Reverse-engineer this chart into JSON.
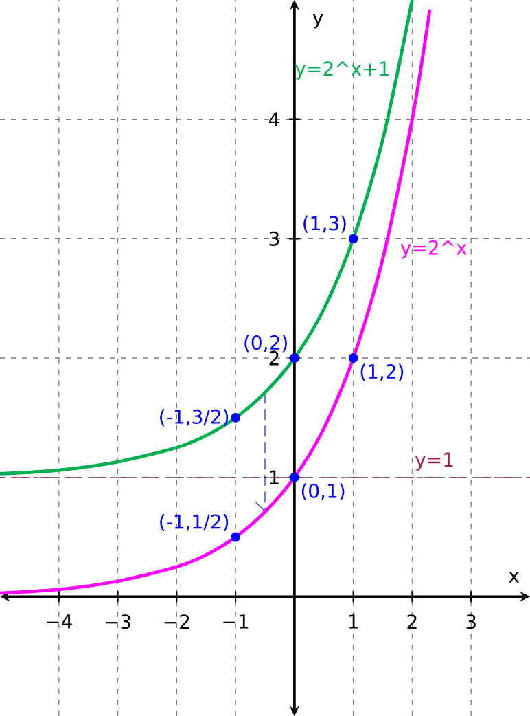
{
  "chart_data": {
    "type": "line",
    "xlabel": "x",
    "ylabel": "y",
    "xlim": [
      -5,
      4
    ],
    "ylim": [
      -1,
      5
    ],
    "xticks": [
      {
        "value": -4,
        "label": "−4"
      },
      {
        "value": -3,
        "label": "−3"
      },
      {
        "value": -2,
        "label": "−2"
      },
      {
        "value": -1,
        "label": "−1"
      },
      1,
      2,
      3
    ],
    "yticks": [
      1,
      2,
      3,
      4
    ],
    "grid": true,
    "series": [
      {
        "name": "y=2^x+1",
        "color": "#00b050",
        "x": [
          -5,
          -4,
          -3,
          -2,
          -1.5,
          -1,
          -0.5,
          0,
          0.5,
          1,
          1.5,
          2
        ],
        "values": [
          1.03,
          1.06,
          1.13,
          1.25,
          1.35,
          1.5,
          1.71,
          2,
          2.41,
          3,
          3.83,
          5
        ]
      },
      {
        "name": "y=2^x",
        "color": "#ff00ff",
        "x": [
          -5,
          -4,
          -3,
          -2,
          -1.5,
          -1,
          -0.5,
          0,
          0.5,
          1,
          1.5,
          2,
          2.3
        ],
        "values": [
          0.03,
          0.06,
          0.13,
          0.25,
          0.35,
          0.5,
          0.71,
          1,
          1.41,
          2,
          2.83,
          4,
          4.92
        ]
      },
      {
        "type": "scatter",
        "color": "#0000ff",
        "x": [
          1,
          0,
          -1,
          -1,
          0,
          1
        ],
        "values": [
          3,
          2,
          1.5,
          0.5,
          1,
          2
        ]
      }
    ],
    "ref_lines": [
      {
        "axis": "y",
        "value": 1,
        "label": "y=1",
        "color": "#a0204a",
        "line_style": "dashed"
      }
    ],
    "annotations": [
      {
        "text": "(1,3)",
        "x": 1,
        "y": 3
      },
      {
        "text": "(0,2)",
        "x": 0,
        "y": 2
      },
      {
        "text": "(-1,3/2)",
        "x": -1,
        "y": 1.5
      },
      {
        "text": "(-1,1/2)",
        "x": -1,
        "y": 0.5
      },
      {
        "text": "(0,1)",
        "x": 0,
        "y": 1
      },
      {
        "text": "(1,2)",
        "x": 1,
        "y": 2
      }
    ]
  }
}
